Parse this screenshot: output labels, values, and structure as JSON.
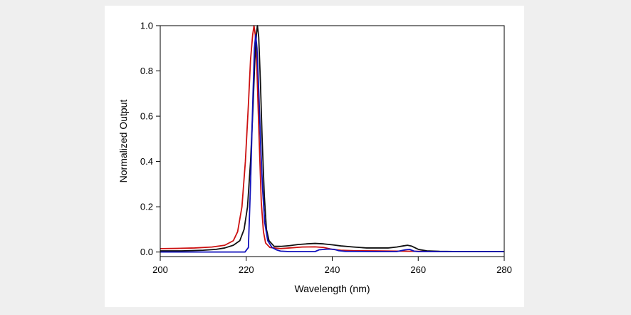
{
  "chart_data": {
    "type": "line",
    "title": "",
    "xlabel": "Wavelength (nm)",
    "ylabel": "Normalized Output",
    "xlim": [
      200,
      280
    ],
    "ylim": [
      0.0,
      1.0
    ],
    "x_ticks": [
      200,
      220,
      240,
      260,
      280
    ],
    "x_tick_labels": [
      "200",
      "220",
      "240",
      "260",
      "280"
    ],
    "y_ticks": [
      0.0,
      0.2,
      0.4,
      0.6,
      0.8,
      1.0
    ],
    "y_tick_labels": [
      "0.0",
      "0.2",
      "0.4",
      "0.6",
      "0.8",
      "1.0"
    ],
    "grid": false,
    "legend": "none",
    "series": [
      {
        "color": "#cc1111",
        "points": [
          [
            200,
            0.015
          ],
          [
            204,
            0.016
          ],
          [
            208,
            0.018
          ],
          [
            212,
            0.022
          ],
          [
            215,
            0.03
          ],
          [
            217,
            0.05
          ],
          [
            218,
            0.09
          ],
          [
            219,
            0.2
          ],
          [
            219.8,
            0.4
          ],
          [
            220.5,
            0.65
          ],
          [
            221,
            0.85
          ],
          [
            221.5,
            0.96
          ],
          [
            221.8,
            1.0
          ],
          [
            222.1,
            0.96
          ],
          [
            222.5,
            0.8
          ],
          [
            223,
            0.5
          ],
          [
            223.5,
            0.22
          ],
          [
            224,
            0.09
          ],
          [
            224.5,
            0.04
          ],
          [
            225.5,
            0.02
          ],
          [
            228,
            0.015
          ],
          [
            230,
            0.018
          ],
          [
            233,
            0.022
          ],
          [
            236,
            0.023
          ],
          [
            238,
            0.02
          ],
          [
            240,
            0.012
          ],
          [
            242,
            0.008
          ],
          [
            245,
            0.006
          ],
          [
            250,
            0.005
          ],
          [
            255,
            0.004
          ],
          [
            260,
            0.003
          ],
          [
            265,
            0.002
          ],
          [
            270,
            0.002
          ],
          [
            275,
            0.002
          ],
          [
            280,
            0.002
          ]
        ]
      },
      {
        "color": "#111111",
        "points": [
          [
            200,
            0.005
          ],
          [
            205,
            0.005
          ],
          [
            210,
            0.008
          ],
          [
            213,
            0.012
          ],
          [
            215,
            0.018
          ],
          [
            217,
            0.03
          ],
          [
            218.5,
            0.05
          ],
          [
            219.5,
            0.1
          ],
          [
            220.3,
            0.2
          ],
          [
            221,
            0.4
          ],
          [
            221.6,
            0.65
          ],
          [
            222,
            0.85
          ],
          [
            222.4,
            0.97
          ],
          [
            222.6,
            1.0
          ],
          [
            222.9,
            0.95
          ],
          [
            223.3,
            0.75
          ],
          [
            223.7,
            0.5
          ],
          [
            224.2,
            0.25
          ],
          [
            224.7,
            0.1
          ],
          [
            225.3,
            0.05
          ],
          [
            226.5,
            0.025
          ],
          [
            228,
            0.025
          ],
          [
            230,
            0.028
          ],
          [
            232,
            0.033
          ],
          [
            234,
            0.036
          ],
          [
            236,
            0.038
          ],
          [
            238,
            0.036
          ],
          [
            240,
            0.032
          ],
          [
            242,
            0.027
          ],
          [
            245,
            0.022
          ],
          [
            248,
            0.018
          ],
          [
            250,
            0.018
          ],
          [
            253,
            0.018
          ],
          [
            255,
            0.022
          ],
          [
            256.5,
            0.027
          ],
          [
            257.5,
            0.03
          ],
          [
            258.5,
            0.026
          ],
          [
            260,
            0.012
          ],
          [
            262,
            0.005
          ],
          [
            265,
            0.003
          ],
          [
            270,
            0.002
          ],
          [
            275,
            0.002
          ],
          [
            280,
            0.002
          ]
        ]
      },
      {
        "color": "#1111bb",
        "points": [
          [
            200,
            0.0
          ],
          [
            210,
            0.0
          ],
          [
            218,
            0.0
          ],
          [
            219.7,
            0.0
          ],
          [
            220.5,
            0.02
          ],
          [
            221,
            0.3
          ],
          [
            221.5,
            0.65
          ],
          [
            221.9,
            0.9
          ],
          [
            222.2,
            0.96
          ],
          [
            222.5,
            0.9
          ],
          [
            222.9,
            0.72
          ],
          [
            223.3,
            0.5
          ],
          [
            223.8,
            0.28
          ],
          [
            224.3,
            0.13
          ],
          [
            225,
            0.05
          ],
          [
            226,
            0.02
          ],
          [
            227,
            0.01
          ],
          [
            228,
            0.004
          ],
          [
            230,
            0.002
          ],
          [
            236,
            0.002
          ],
          [
            237,
            0.01
          ],
          [
            239,
            0.013
          ],
          [
            240.5,
            0.012
          ],
          [
            241.5,
            0.006
          ],
          [
            243,
            0.003
          ],
          [
            250,
            0.002
          ],
          [
            255,
            0.002
          ],
          [
            257,
            0.01
          ],
          [
            258,
            0.012
          ],
          [
            259,
            0.004
          ],
          [
            260,
            0.002
          ],
          [
            265,
            0.002
          ],
          [
            270,
            0.002
          ],
          [
            275,
            0.002
          ],
          [
            280,
            0.002
          ]
        ]
      }
    ]
  }
}
